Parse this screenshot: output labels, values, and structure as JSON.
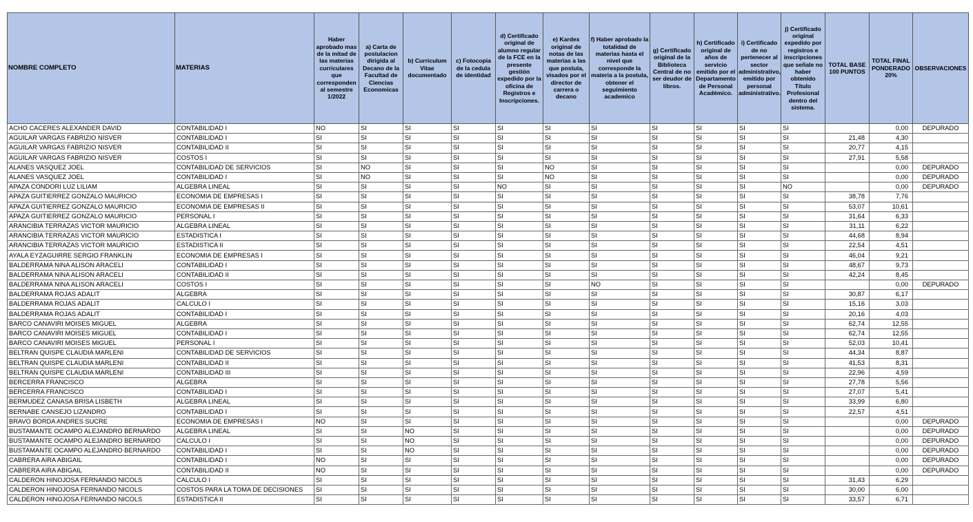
{
  "table": {
    "headers": [
      "NOMBRE COMPLETO",
      "MATERIAS",
      "Haber aprobado mas de la mitad de las materias curriculares que corresponden al semestre 1/2022",
      "a) Carta de postulacion dirigida al Decano de la Facultad de Ciencias Economicas",
      "b) Curriculum Vitae documentado",
      "c) Fotocopia de la cedula de identidad",
      "d) Certificado original de alumno regular de la FCE en la presente gestión expedido por la oficina de Registros e Inscripciones.",
      "e) Kardex original de notas de las materias a las que postula, visados por el director de carrera o decano",
      "f) Haber aprobado la totalidad de materias hasta el nivel que corresponde la materia a la postula, obtener el seguimiento academico",
      "g) Certificado original de la Biblioteca Central de no ser deudor de libros.",
      "h) Certificado original de años de servicio emitido por el Departamento de Personal Académico.",
      "i) Certificado de no pertenecer al sector administrativo, emitido por personal administrativo.",
      "j) Certificado original expedido por registros e inscripciones que señale no haber obtenido Título Profesional dentro del sistema.",
      "TOTAL BASE 100 PUNTOS",
      "TOTAL FINAL PONDERADO 20%",
      "OBSERVACIONES"
    ],
    "rows": [
      [
        "ACHO CACERES ALEXANDER DAVID",
        "CONTABILIDAD I",
        "NO",
        "SI",
        "SI",
        "SI",
        "SI",
        "SI",
        "SI",
        "SI",
        "SI",
        "SI",
        "SI",
        null,
        "0,00",
        "DEPURADO"
      ],
      [
        "AGUILAR VARGAS FABRIZIO NISVER",
        "CONTABILIDAD I",
        "SI",
        "SI",
        "SI",
        "SI",
        "SI",
        "SI",
        "SI",
        "SI",
        "SI",
        "SI",
        "SI",
        "21,48",
        "4,30",
        null
      ],
      [
        "AGUILAR VARGAS FABRIZIO NISVER",
        "CONTABILIDAD II",
        "SI",
        "SI",
        "SI",
        "SI",
        "SI",
        "SI",
        "SI",
        "SI",
        "SI",
        "SI",
        "SI",
        "20,77",
        "4,15",
        null
      ],
      [
        "AGUILAR VARGAS FABRIZIO NISVER",
        "COSTOS I",
        "SI",
        "SI",
        "SI",
        "SI",
        "SI",
        "SI",
        "SI",
        "SI",
        "SI",
        "SI",
        "SI",
        "27,91",
        "5,58",
        null
      ],
      [
        "ALANES VASQUEZ JOEL",
        "CONTABILIDAD DE SERVICIOS",
        "SI",
        "NO",
        "SI",
        "SI",
        "SI",
        "NO",
        "SI",
        "SI",
        "SI",
        "SI",
        "SI",
        null,
        "0,00",
        "DEPURADO"
      ],
      [
        "ALANES VASQUEZ JOEL",
        "CONTABILIDAD I",
        "SI",
        "NO",
        "SI",
        "SI",
        "SI",
        "NO",
        "SI",
        "SI",
        "SI",
        "SI",
        "SI",
        null,
        "0,00",
        "DEPURADO"
      ],
      [
        "APAZA CONDORI LUZ LILIAM",
        "ALGEBRA LINEAL",
        "SI",
        "SI",
        "SI",
        "SI",
        "NO",
        "SI",
        "SI",
        "SI",
        "SI",
        "SI",
        "NO",
        null,
        "0,00",
        "DEPURADO"
      ],
      [
        "APAZA GUITIERREZ GONZALO MAURICIO",
        "ECONOMIA DE EMPRESAS I",
        "SI",
        "SI",
        "SI",
        "SI",
        "SI",
        "SI",
        "SI",
        "SI",
        "SI",
        "SI",
        "SI",
        "38,78",
        "7,76",
        null
      ],
      [
        "APAZA GUITIERREZ GONZALO MAURICIO",
        "ECONOMIA DE EMPRESAS II",
        "SI",
        "SI",
        "SI",
        "SI",
        "SI",
        "SI",
        "SI",
        "SI",
        "SI",
        "SI",
        "SI",
        "53,07",
        "10,61",
        null
      ],
      [
        "APAZA GUITIERREZ GONZALO MAURICIO",
        "PERSONAL I",
        "SI",
        "SI",
        "SI",
        "SI",
        "SI",
        "SI",
        "SI",
        "SI",
        "SI",
        "SI",
        "SI",
        "31,64",
        "6,33",
        null
      ],
      [
        "ARANCIBIA TERRAZAS VICTOR MAURICIO",
        "ALGEBRA LINEAL",
        "SI",
        "SI",
        "SI",
        "SI",
        "SI",
        "SI",
        "SI",
        "SI",
        "SI",
        "SI",
        "SI",
        "31,11",
        "6,22",
        null
      ],
      [
        "ARANCIBIA TERRAZAS VICTOR MAURICIO",
        "ESTADISTICA I",
        "SI",
        "SI",
        "SI",
        "SI",
        "SI",
        "SI",
        "SI",
        "SI",
        "SI",
        "SI",
        "SI",
        "44,68",
        "8,94",
        null
      ],
      [
        "ARANCIBIA TERRAZAS VICTOR MAURICIO",
        "ESTADISTICA II",
        "SI",
        "SI",
        "SI",
        "SI",
        "SI",
        "SI",
        "SI",
        "SI",
        "SI",
        "SI",
        "SI",
        "22,54",
        "4,51",
        null
      ],
      [
        "AYALA EYZAGUIRRE SERGIO FRANKLIN",
        "ECONOMIA DE EMPRESAS I",
        "SI",
        "SI",
        "SI",
        "SI",
        "SI",
        "SI",
        "SI",
        "SI",
        "SI",
        "SI",
        "SI",
        "46,04",
        "9,21",
        null
      ],
      [
        "BALDERRAMA NINA ALISON ARACELI",
        "CONTABILIDAD I",
        "SI",
        "SI",
        "SI",
        "SI",
        "SI",
        "SI",
        "SI",
        "SI",
        "SI",
        "SI",
        "SI",
        "48,67",
        "9,73",
        null
      ],
      [
        "BALDERRAMA NINA ALISON ARACELI",
        "CONTABILIDAD II",
        "SI",
        "SI",
        "SI",
        "SI",
        "SI",
        "SI",
        "SI",
        "SI",
        "SI",
        "SI",
        "SI",
        "42,24",
        "8,45",
        null
      ],
      [
        "BALDERRAMA NINA ALISON ARACELI",
        "COSTOS I",
        "SI",
        "SI",
        "SI",
        "SI",
        "SI",
        "SI",
        "NO",
        "SI",
        "SI",
        "SI",
        "SI",
        null,
        "0,00",
        "DEPURADO"
      ],
      [
        "BALDERRAMA ROJAS ADALIT",
        "ALGEBRA",
        "SI",
        "SI",
        "SI",
        "SI",
        "SI",
        "SI",
        "SI",
        "SI",
        "SI",
        "SI",
        "SI",
        "30,87",
        "6,17",
        null
      ],
      [
        "BALDERRAMA ROJAS ADALIT",
        "CALCULO I",
        "SI",
        "SI",
        "SI",
        "SI",
        "SI",
        "SI",
        "SI",
        "SI",
        "SI",
        "SI",
        "SI",
        "15,16",
        "3,03",
        null
      ],
      [
        "BALDERRAMA ROJAS ADALIT",
        "CONTABILIDAD I",
        "SI",
        "SI",
        "SI",
        "SI",
        "SI",
        "SI",
        "SI",
        "SI",
        "SI",
        "SI",
        "SI",
        "20,16",
        "4,03",
        null
      ],
      [
        "BARCO CANAVIRI MOISES MIGUEL",
        "ALGEBRA",
        "SI",
        "SI",
        "SI",
        "SI",
        "SI",
        "SI",
        "SI",
        "SI",
        "SI",
        "SI",
        "SI",
        "62,74",
        "12,55",
        null
      ],
      [
        "BARCO CANAVIRI MOISES MIGUEL",
        "CONTABILIDAD I",
        "SI",
        "SI",
        "SI",
        "SI",
        "SI",
        "SI",
        "SI",
        "SI",
        "SI",
        "SI",
        "SI",
        "62,74",
        "12,55",
        null
      ],
      [
        "BARCO CANAVIRI MOISES MIGUEL",
        "PERSONAL I",
        "SI",
        "SI",
        "SI",
        "SI",
        "SI",
        "SI",
        "SI",
        "SI",
        "SI",
        "SI",
        "SI",
        "52,03",
        "10,41",
        null
      ],
      [
        "BELTRAN QUISPE CLAUDIA MARLENI",
        "CONTABILIDAD DE SERVICIOS",
        "SI",
        "SI",
        "SI",
        "SI",
        "SI",
        "SI",
        "SI",
        "SI",
        "SI",
        "SI",
        "SI",
        "44,34",
        "8,87",
        null
      ],
      [
        "BELTRAN QUISPE CLAUDIA MARLENI",
        "CONTABILIDAD II",
        "SI",
        "SI",
        "SI",
        "SI",
        "SI",
        "SI",
        "SI",
        "SI",
        "SI",
        "SI",
        "SI",
        "41,53",
        "8,31",
        null
      ],
      [
        "BELTRAN QUISPE CLAUDIA MARLENI",
        "CONTABILIDAD III",
        "SI",
        "SI",
        "SI",
        "SI",
        "SI",
        "SI",
        "SI",
        "SI",
        "SI",
        "SI",
        "SI",
        "22,96",
        "4,59",
        null
      ],
      [
        "BERCERRA FRANCISCO",
        "ALGEBRA",
        "SI",
        "SI",
        "SI",
        "SI",
        "SI",
        "SI",
        "SI",
        "SI",
        "SI",
        "SI",
        "SI",
        "27,78",
        "5,56",
        null
      ],
      [
        "BERCERRA FRANCISCO",
        "CONTABILIDAD I",
        "SI",
        "SI",
        "SI",
        "SI",
        "SI",
        "SI",
        "SI",
        "SI",
        "SI",
        "SI",
        "SI",
        "27,07",
        "5,41",
        null
      ],
      [
        "BERMUDEZ CANASA BRISA LISBETH",
        "ALGEBRA LINEAL",
        "SI",
        "SI",
        "SI",
        "SI",
        "SI",
        "SI",
        "SI",
        "SI",
        "SI",
        "SI",
        "SI",
        "33,99",
        "6,80",
        null
      ],
      [
        "BERNABE CANSEJO LIZANDRO",
        "CONTABILIDAD I",
        "SI",
        "SI",
        "SI",
        "SI",
        "SI",
        "SI",
        "SI",
        "SI",
        "SI",
        "SI",
        "SI",
        "22,57",
        "4,51",
        null
      ],
      [
        "BRAVO BORDA ANDRES SUCRE",
        "ECONOMIA DE EMPRESAS I",
        "NO",
        "SI",
        "SI",
        "SI",
        "SI",
        "SI",
        "SI",
        "SI",
        "SI",
        "SI",
        "SI",
        null,
        "0,00",
        "DEPURADO"
      ],
      [
        "BUSTAMANTE OCAMPO ALEJANDRO BERNARDO",
        "ALGEBRA LINEAL",
        "SI",
        "SI",
        "NO",
        "SI",
        "SI",
        "SI",
        "SI",
        "SI",
        "SI",
        "SI",
        "SI",
        null,
        "0,00",
        "DEPURADO"
      ],
      [
        "BUSTAMANTE OCAMPO ALEJANDRO BERNARDO",
        "CALCULO I",
        "SI",
        "SI",
        "NO",
        "SI",
        "SI",
        "SI",
        "SI",
        "SI",
        "SI",
        "SI",
        "SI",
        null,
        "0,00",
        "DEPURADO"
      ],
      [
        "BUSTAMANTE OCAMPO ALEJANDRO BERNARDO",
        "CONTABILIDAD I",
        "SI",
        "SI",
        "NO",
        "SI",
        "SI",
        "SI",
        "SI",
        "SI",
        "SI",
        "SI",
        "SI",
        null,
        "0,00",
        "DEPURADO"
      ],
      [
        "CABRERA AIRA ABIGAIL",
        "CONTABILIDAD I",
        "NO",
        "SI",
        "SI",
        "SI",
        "SI",
        "SI",
        "SI",
        "SI",
        "SI",
        "SI",
        "SI",
        null,
        "0,00",
        "DEPURADO"
      ],
      [
        "CABRERA AIRA ABIGAIL",
        "CONTABILIDAD II",
        "NO",
        "SI",
        "SI",
        "SI",
        "SI",
        "SI",
        "SI",
        "SI",
        "SI",
        "SI",
        "SI",
        null,
        "0,00",
        "DEPURADO"
      ],
      [
        "CALDERON HINOJOSA FERNANDO NICOLS",
        "CALCULO I",
        "SI",
        "SI",
        "SI",
        "SI",
        "SI",
        "SI",
        "SI",
        "SI",
        "SI",
        "SI",
        "SI",
        "31,43",
        "6,29",
        null
      ],
      [
        "CALDERON HINOJOSA FERNANDO NICOLS",
        "COSTOS PARA LA TOMA DE DECISIONES",
        "SI",
        "SI",
        "SI",
        "SI",
        "SI",
        "SI",
        "SI",
        "SI",
        "SI",
        "SI",
        "SI",
        "30,00",
        "6,00",
        null
      ],
      [
        "CALDERON HINOJOSA FERNANDO NICOLS",
        "ESTADISTICA II",
        "SI",
        "SI",
        "SI",
        "SI",
        "SI",
        "SI",
        "SI",
        "SI",
        "SI",
        "SI",
        "SI",
        "33,57",
        "6,71",
        null
      ]
    ]
  }
}
